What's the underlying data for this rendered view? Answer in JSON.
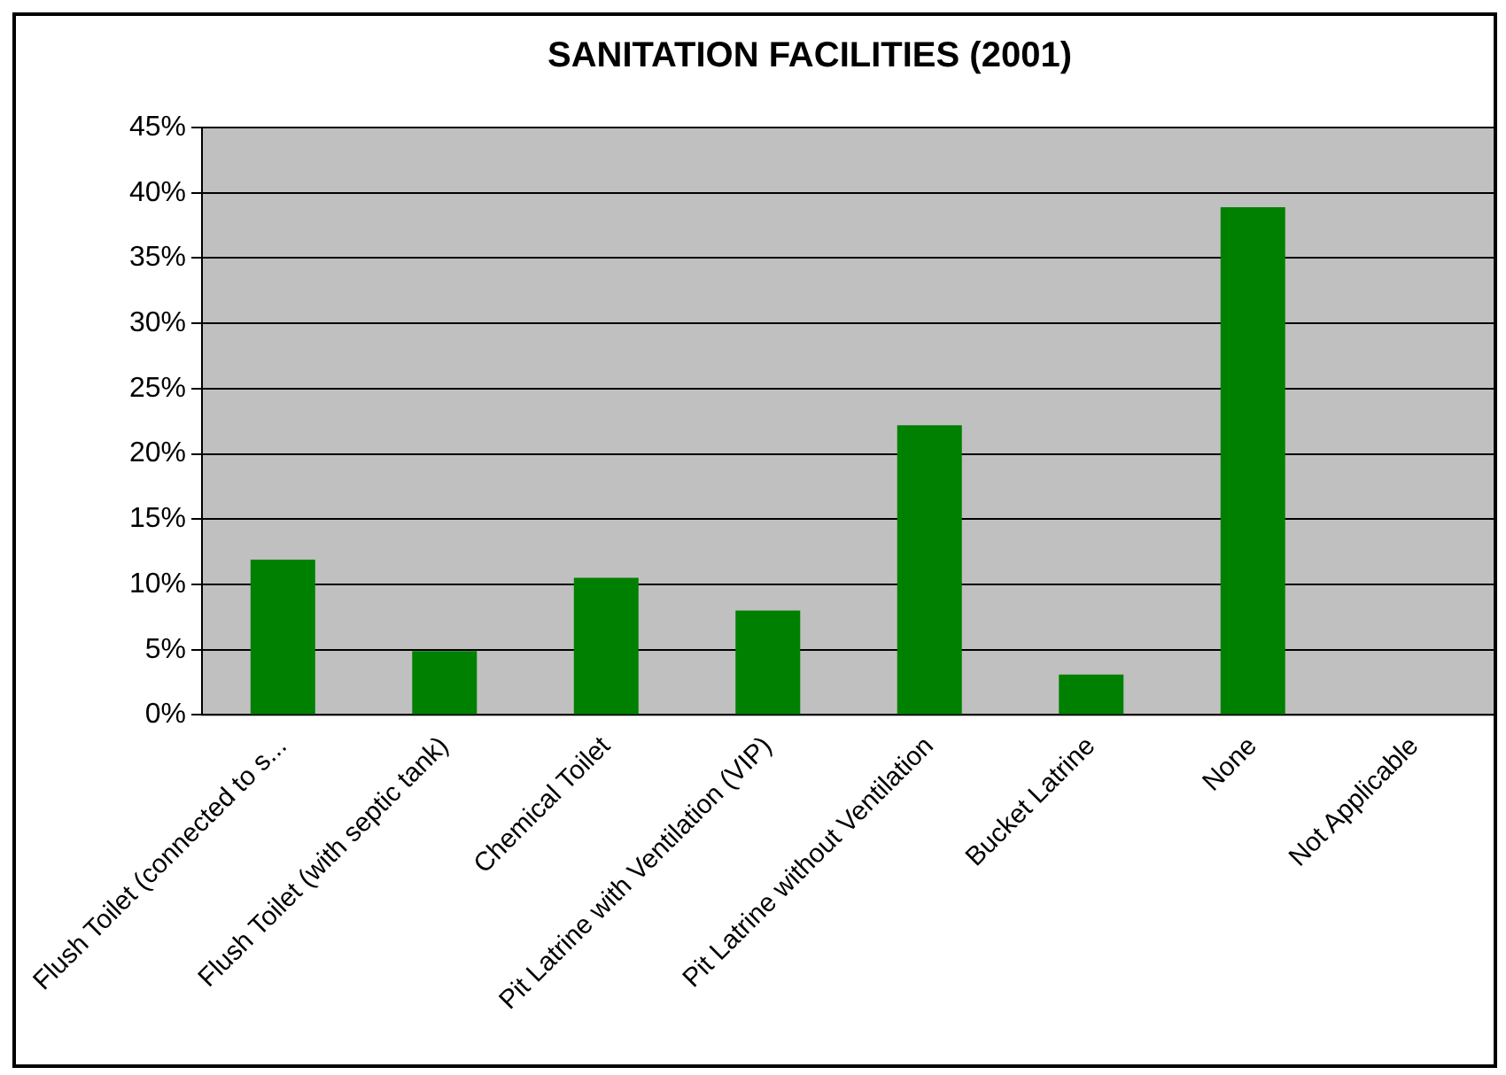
{
  "chart_data": {
    "type": "bar",
    "title": "SANITATION FACILITIES (2001)",
    "categories": [
      "Flush Toilet (connected to s...",
      "Flush Toilet (with septic tank)",
      "Chemical Toilet",
      "Pit Latrine with Ventilation (VIP)",
      "Pit Latrine without Ventilation",
      "Bucket Latrine",
      "None",
      "Not Applicable"
    ],
    "values": [
      11.9,
      4.9,
      10.5,
      8.0,
      22.2,
      3.1,
      38.9,
      0
    ],
    "color": "#008000",
    "ylim": [
      0,
      45
    ],
    "yticks": [
      {
        "value": 0,
        "label": "0%"
      },
      {
        "value": 5,
        "label": "5%"
      },
      {
        "value": 10,
        "label": "10%"
      },
      {
        "value": 15,
        "label": "15%"
      },
      {
        "value": 20,
        "label": "20%"
      },
      {
        "value": 25,
        "label": "25%"
      },
      {
        "value": 30,
        "label": "30%"
      },
      {
        "value": 35,
        "label": "35%"
      },
      {
        "value": 40,
        "label": "40%"
      },
      {
        "value": 45,
        "label": "45%"
      }
    ],
    "grid": "y",
    "legend": false
  }
}
